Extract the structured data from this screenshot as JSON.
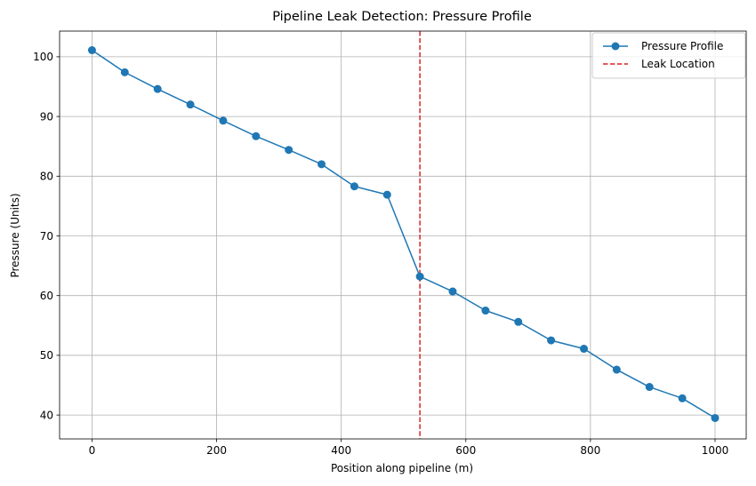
{
  "chart_data": {
    "type": "line",
    "title": "Pipeline Leak Detection: Pressure Profile",
    "xlabel": "Position along pipeline (m)",
    "ylabel": "Pressure (Units)",
    "xlim": [
      -52,
      1050
    ],
    "ylim": [
      36.0,
      104.3
    ],
    "xticks": [
      0,
      200,
      400,
      600,
      800,
      1000
    ],
    "yticks": [
      40,
      50,
      60,
      70,
      80,
      90,
      100
    ],
    "grid": true,
    "legend_position": "top-right",
    "series": [
      {
        "name": "Pressure Profile",
        "color": "#1f77b4",
        "marker": "circle",
        "x": [
          0,
          52.6,
          105.3,
          157.9,
          210.5,
          263.2,
          315.8,
          368.4,
          421.1,
          473.7,
          526.3,
          578.9,
          631.6,
          684.2,
          736.8,
          789.5,
          842.1,
          894.7,
          947.4,
          1000
        ],
        "y": [
          101.1,
          97.4,
          94.6,
          92.0,
          89.3,
          86.7,
          84.4,
          82.0,
          78.3,
          76.9,
          63.2,
          60.7,
          57.5,
          55.6,
          52.5,
          51.1,
          47.6,
          44.7,
          42.8,
          39.5
        ]
      }
    ],
    "reference_lines": [
      {
        "name": "Leak Location",
        "orientation": "vertical",
        "x": 526.3,
        "color": "#d62728",
        "style": "dashed"
      }
    ]
  }
}
